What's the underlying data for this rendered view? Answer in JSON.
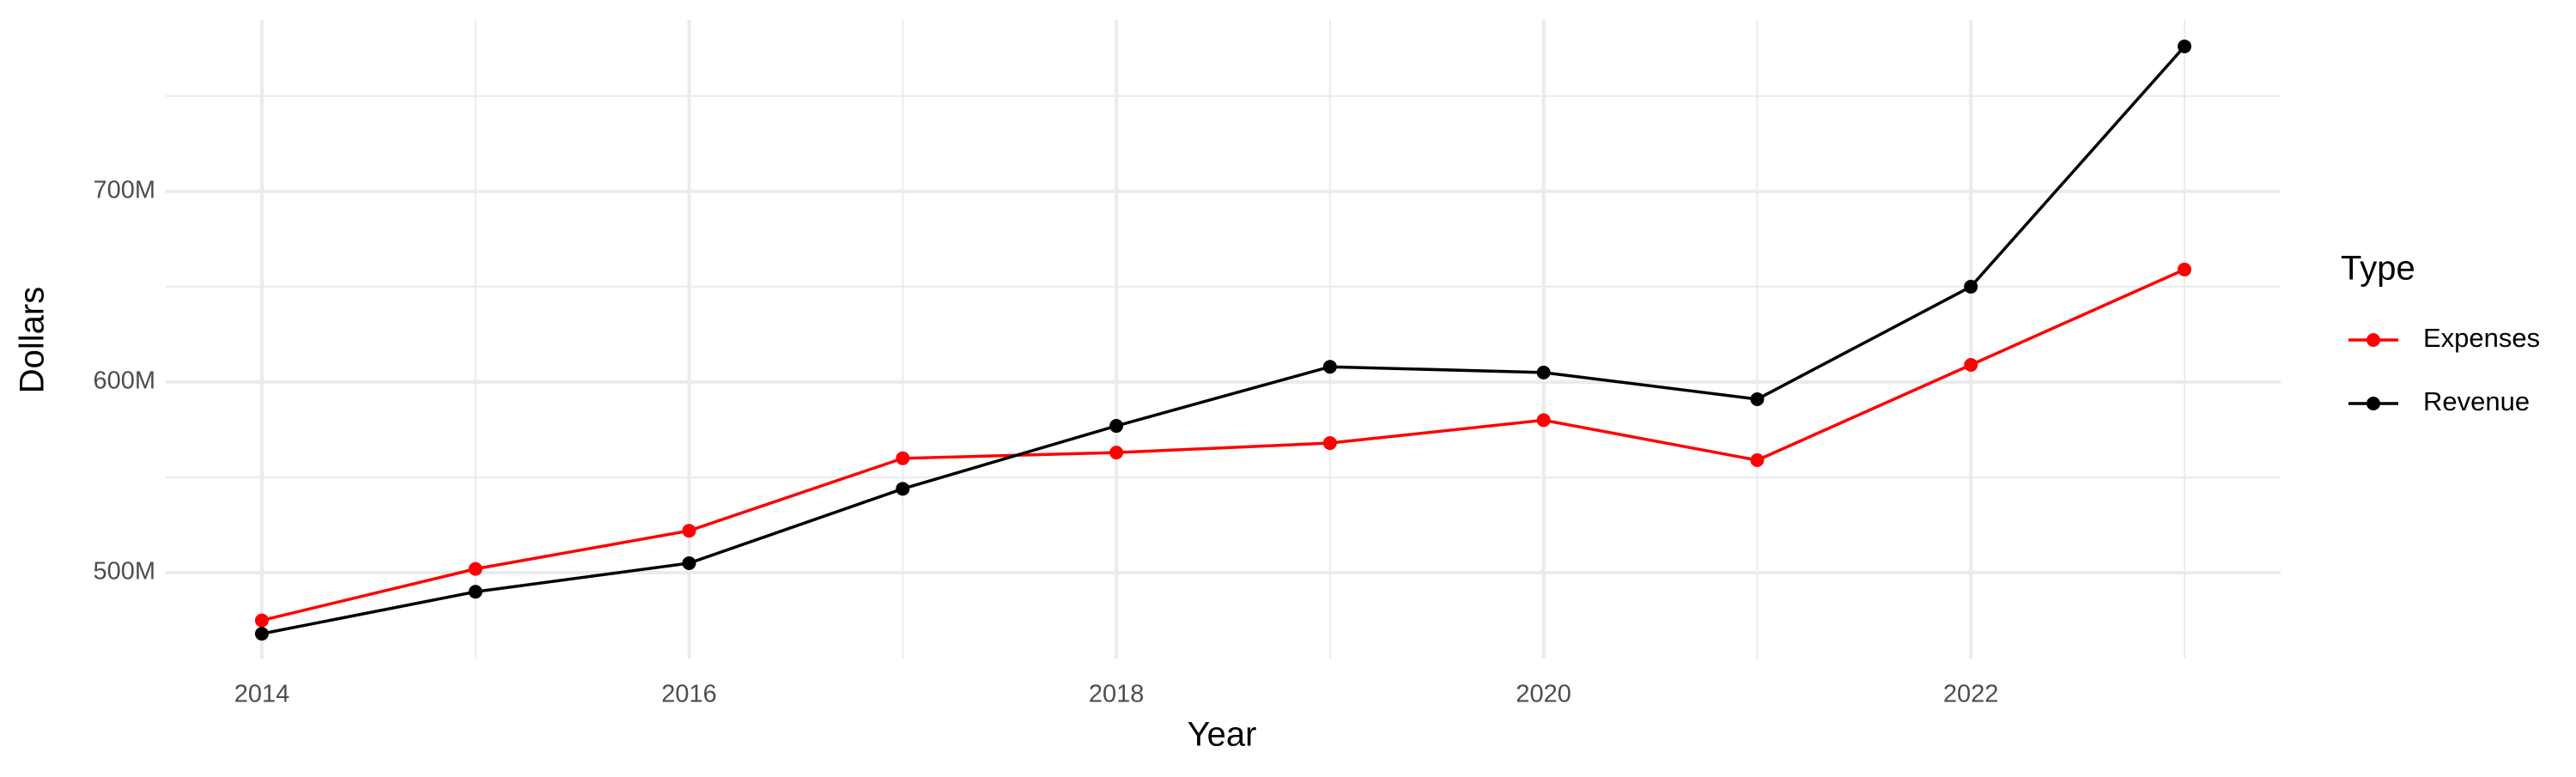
{
  "chart_data": {
    "type": "line",
    "x_label": "Year",
    "y_label": "Dollars",
    "legend_title": "Type",
    "legend_position": "right",
    "grid": true,
    "x": [
      2014,
      2015,
      2016,
      2017,
      2018,
      2019,
      2020,
      2021,
      2022,
      2023
    ],
    "series": [
      {
        "name": "Expenses",
        "color": "#ff0000",
        "values": [
          475000000,
          502000000,
          522000000,
          560000000,
          563000000,
          568000000,
          580000000,
          559000000,
          609000000,
          659000000
        ]
      },
      {
        "name": "Revenue",
        "color": "#000000",
        "values": [
          468000000,
          490000000,
          505000000,
          544000000,
          577000000,
          608000000,
          605000000,
          591000000,
          650000000,
          776000000
        ]
      }
    ],
    "xlim": [
      2013.55,
      2023.45
    ],
    "xticks": [
      2014,
      2016,
      2018,
      2020,
      2022
    ],
    "ylim": [
      455000000,
      790000000
    ],
    "yticks": [
      {
        "value": 500000000,
        "label": "500M"
      },
      {
        "value": 600000000,
        "label": "600M"
      },
      {
        "value": 700000000,
        "label": "700M"
      }
    ]
  }
}
